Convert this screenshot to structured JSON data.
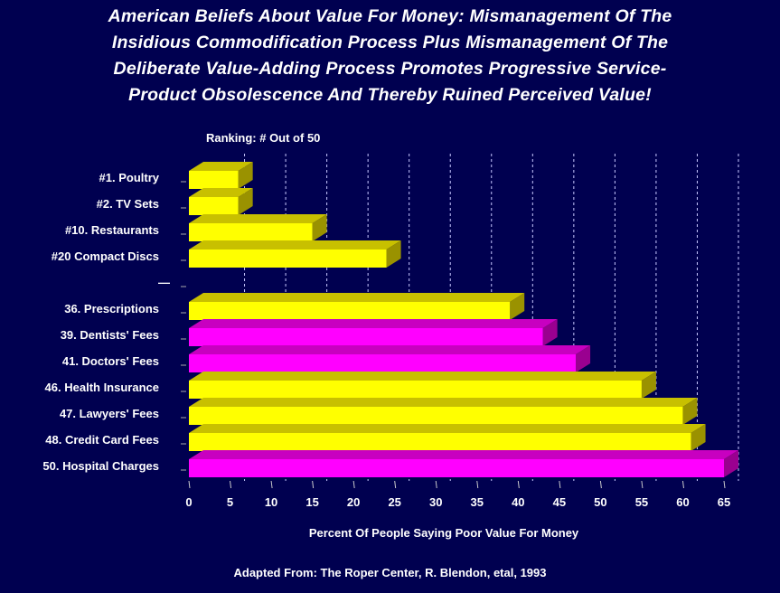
{
  "title_lines": [
    "American Beliefs About Value For Money: Mismanagement Of  The",
    "Insidious Commodification Process Plus Mismanagement Of The",
    "Deliberate Value-Adding Process Promotes Progressive Service-",
    "Product Obsolescence And Thereby Ruined Perceived Value!"
  ],
  "source": "Adapted From: The Roper Center, R. Blendon, etal, 1993",
  "chart_data": {
    "type": "bar",
    "orientation": "horizontal",
    "style": "3d",
    "title": "American Beliefs About Value For Money: Mismanagement Of  The Insidious Commodification Process Plus Mismanagement Of The Deliberate Value-Adding Process Promotes Progressive Service-Product Obsolescence And Thereby Ruined Perceived Value!",
    "category_header": "Ranking: # Out of 50",
    "xlabel": "Percent Of People Saying Poor Value For Money",
    "xlim": [
      0,
      65
    ],
    "xticks": [
      0,
      5,
      10,
      15,
      20,
      25,
      30,
      35,
      40,
      45,
      50,
      55,
      60,
      65
    ],
    "grid": "vertical dashed",
    "colors": {
      "yellow": "#ffff00",
      "magenta": "#ff00ff",
      "background": "#000050"
    },
    "categories": [
      "#1. Poultry",
      "#2. TV Sets",
      "#10. Restaurants",
      "#20 Compact Discs",
      "—",
      "36. Prescriptions",
      "39. Dentists' Fees",
      "41. Doctors' Fees",
      "46. Health Insurance",
      "47. Lawyers' Fees",
      "48. Credit Card Fees",
      "50. Hospital Charges"
    ],
    "values": [
      6,
      6,
      15,
      24,
      null,
      39,
      43,
      47,
      55,
      60,
      61,
      65
    ],
    "bar_colors": [
      "yellow",
      "yellow",
      "yellow",
      "yellow",
      null,
      "yellow",
      "magenta",
      "magenta",
      "yellow",
      "yellow",
      "yellow",
      "magenta"
    ]
  }
}
